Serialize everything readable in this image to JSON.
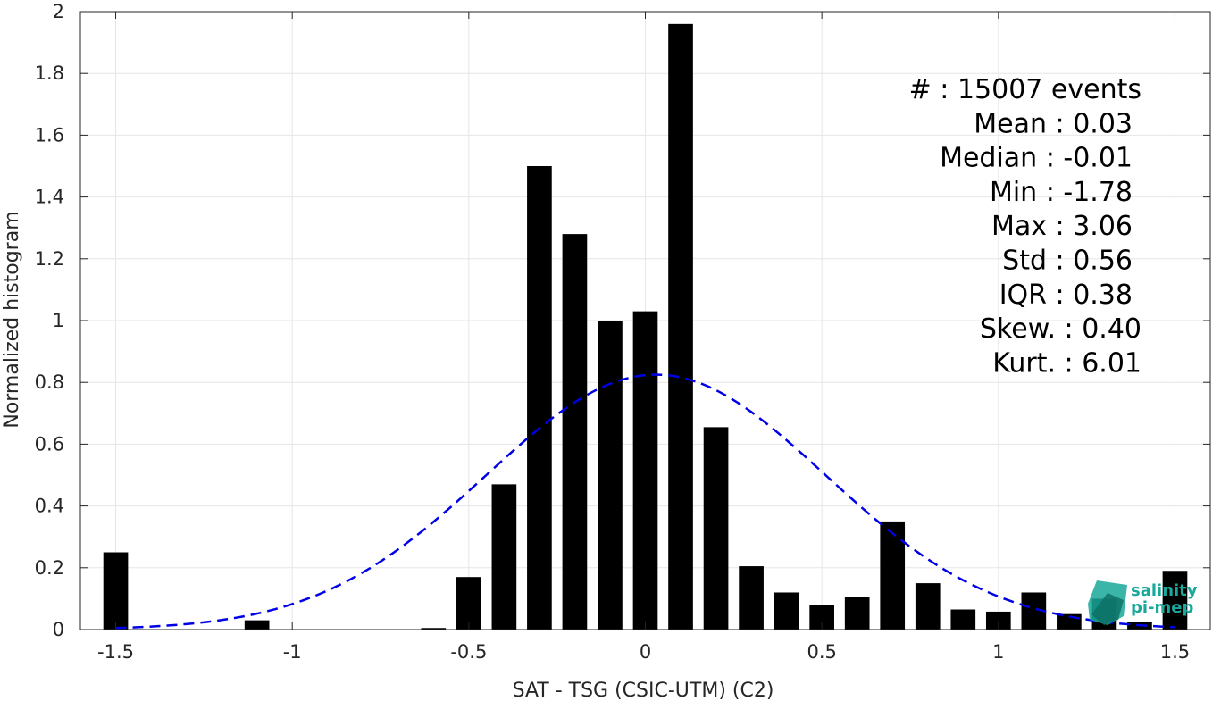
{
  "chart_data": {
    "type": "bar",
    "xlabel": "SAT - TSG (CSIC-UTM) (C2)",
    "ylabel": "Normalized histogram",
    "xlim": [
      -1.6,
      1.6
    ],
    "ylim": [
      0,
      2
    ],
    "grid": true,
    "xticks": [
      -1.5,
      -1,
      -0.5,
      0,
      0.5,
      1,
      1.5
    ],
    "xtick_labels": [
      "-1.5",
      "-1",
      "-0.5",
      "0",
      "0.5",
      "1",
      "1.5"
    ],
    "yticks": [
      0,
      0.2,
      0.4,
      0.6,
      0.8,
      1,
      1.2,
      1.4,
      1.6,
      1.8,
      2
    ],
    "ytick_labels": [
      "0",
      "0.2",
      "0.4",
      "0.6",
      "0.8",
      "1",
      "1.2",
      "1.4",
      "1.6",
      "1.8",
      "2"
    ],
    "bar_color": "#000000",
    "bars": [
      {
        "x": -1.5,
        "y": 0.25
      },
      {
        "x": -1.1,
        "y": 0.03
      },
      {
        "x": -0.6,
        "y": 0.005
      },
      {
        "x": -0.5,
        "y": 0.17
      },
      {
        "x": -0.4,
        "y": 0.47
      },
      {
        "x": -0.3,
        "y": 1.5
      },
      {
        "x": -0.2,
        "y": 1.28
      },
      {
        "x": -0.1,
        "y": 1.0
      },
      {
        "x": 0.0,
        "y": 1.03
      },
      {
        "x": 0.1,
        "y": 1.96
      },
      {
        "x": 0.2,
        "y": 0.655
      },
      {
        "x": 0.3,
        "y": 0.205
      },
      {
        "x": 0.4,
        "y": 0.12
      },
      {
        "x": 0.5,
        "y": 0.08
      },
      {
        "x": 0.6,
        "y": 0.105
      },
      {
        "x": 0.7,
        "y": 0.35
      },
      {
        "x": 0.8,
        "y": 0.15
      },
      {
        "x": 0.9,
        "y": 0.065
      },
      {
        "x": 1.0,
        "y": 0.058
      },
      {
        "x": 1.1,
        "y": 0.12
      },
      {
        "x": 1.2,
        "y": 0.05
      },
      {
        "x": 1.3,
        "y": 0.1
      },
      {
        "x": 1.4,
        "y": 0.025
      },
      {
        "x": 1.5,
        "y": 0.19
      }
    ],
    "bin_width": 0.1,
    "fit_curve": {
      "type": "gaussian",
      "style": "dashed",
      "color": "#0000e6",
      "mean": 0.03,
      "std": 0.48,
      "peak": 0.825,
      "x_range": [
        -1.5,
        1.5
      ]
    },
    "annotations": [
      "#  : 15007 events",
      "Mean : 0.03",
      "Median : -0.01",
      "Min : -1.78",
      "Max : 3.06",
      "Std : 0.56",
      "IQR : 0.38",
      "Skew. : 0.40",
      "Kurt. : 6.01"
    ]
  },
  "logo": {
    "line1": "salinity",
    "line2": "pi-mep",
    "color": "#1aa89a"
  }
}
